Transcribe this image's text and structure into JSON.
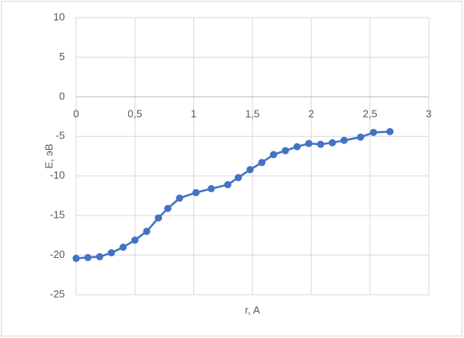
{
  "chart_data": {
    "type": "line",
    "x_label": "r, A",
    "y_label": "E, эВ",
    "series": [
      {
        "color": "#4472c4",
        "x": [
          0,
          0.1,
          0.2,
          0.3,
          0.4,
          0.5,
          0.6,
          0.7,
          0.78,
          0.88,
          1.02,
          1.15,
          1.29,
          1.38,
          1.48,
          1.58,
          1.68,
          1.78,
          1.88,
          1.98,
          2.08,
          2.18,
          2.28,
          2.42,
          2.53,
          2.67
        ],
        "values": [
          -20.4,
          -20.3,
          -20.2,
          -19.7,
          -19.0,
          -18.1,
          -17.0,
          -15.3,
          -14.1,
          -12.8,
          -12.1,
          -11.6,
          -11.1,
          -10.2,
          -9.2,
          -8.3,
          -7.3,
          -6.8,
          -6.3,
          -5.9,
          -6.0,
          -5.8,
          -5.5,
          -5.1,
          -4.5,
          -4.4
        ]
      }
    ],
    "xlim": [
      0,
      3
    ],
    "xticks": [
      0,
      {
        "value": 0.5,
        "label": "0,5"
      },
      1,
      {
        "value": 1.5,
        "label": "1,5"
      },
      2,
      {
        "value": 2.5,
        "label": "2,5"
      },
      3
    ],
    "ylim": [
      -25,
      10
    ],
    "yticks": [
      -25,
      -20,
      -15,
      -10,
      -5,
      0,
      5,
      10
    ],
    "grid": true
  }
}
